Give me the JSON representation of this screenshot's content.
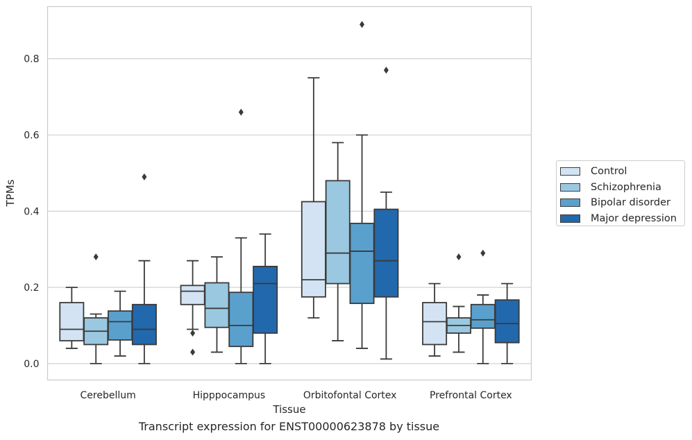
{
  "chart_data": {
    "type": "box",
    "xlabel": "Tissue",
    "ylabel": "TPMs",
    "caption": "Transcript expression for ENST00000623878 by tissue",
    "categories": [
      "Cerebellum",
      "Hipppocampus",
      "Orbitofontal Cortex",
      "Prefrontal Cortex"
    ],
    "ylim": [
      -0.043,
      0.937
    ],
    "yticks": [
      0.0,
      0.2,
      0.4,
      0.6,
      0.8
    ],
    "ytick_labels": [
      "0.0",
      "0.2",
      "0.4",
      "0.6",
      "0.8"
    ],
    "grid": true,
    "legend_position": "right",
    "series": [
      {
        "name": "Control",
        "color": "#d3e3f3",
        "boxes": [
          {
            "whislo": 0.04,
            "q1": 0.06,
            "med": 0.09,
            "q3": 0.16,
            "whishi": 0.2,
            "fliers": []
          },
          {
            "whislo": 0.09,
            "q1": 0.155,
            "med": 0.19,
            "q3": 0.205,
            "whishi": 0.27,
            "fliers": [
              0.08,
              0.03
            ]
          },
          {
            "whislo": 0.12,
            "q1": 0.175,
            "med": 0.22,
            "q3": 0.425,
            "whishi": 0.75,
            "fliers": []
          },
          {
            "whislo": 0.02,
            "q1": 0.05,
            "med": 0.11,
            "q3": 0.16,
            "whishi": 0.21,
            "fliers": []
          }
        ]
      },
      {
        "name": "Schizophrenia",
        "color": "#9ac8e0",
        "boxes": [
          {
            "whislo": 0.0,
            "q1": 0.05,
            "med": 0.085,
            "q3": 0.12,
            "whishi": 0.13,
            "fliers": [
              0.28
            ]
          },
          {
            "whislo": 0.03,
            "q1": 0.095,
            "med": 0.145,
            "q3": 0.212,
            "whishi": 0.28,
            "fliers": []
          },
          {
            "whislo": 0.06,
            "q1": 0.21,
            "med": 0.29,
            "q3": 0.48,
            "whishi": 0.58,
            "fliers": []
          },
          {
            "whislo": 0.03,
            "q1": 0.08,
            "med": 0.1,
            "q3": 0.12,
            "whishi": 0.15,
            "fliers": [
              0.28
            ]
          }
        ]
      },
      {
        "name": "Bipolar disorder",
        "color": "#5aa0cd",
        "boxes": [
          {
            "whislo": 0.02,
            "q1": 0.062,
            "med": 0.11,
            "q3": 0.138,
            "whishi": 0.19,
            "fliers": []
          },
          {
            "whislo": 0.0,
            "q1": 0.045,
            "med": 0.1,
            "q3": 0.187,
            "whishi": 0.33,
            "fliers": [
              0.66
            ]
          },
          {
            "whislo": 0.04,
            "q1": 0.158,
            "med": 0.295,
            "q3": 0.368,
            "whishi": 0.6,
            "fliers": [
              0.89
            ]
          },
          {
            "whislo": 0.0,
            "q1": 0.093,
            "med": 0.115,
            "q3": 0.155,
            "whishi": 0.18,
            "fliers": [
              0.29
            ]
          }
        ]
      },
      {
        "name": "Major depression",
        "color": "#2268ad",
        "boxes": [
          {
            "whislo": 0.0,
            "q1": 0.05,
            "med": 0.09,
            "q3": 0.155,
            "whishi": 0.27,
            "fliers": [
              0.49
            ]
          },
          {
            "whislo": 0.0,
            "q1": 0.08,
            "med": 0.21,
            "q3": 0.255,
            "whishi": 0.34,
            "fliers": []
          },
          {
            "whislo": 0.012,
            "q1": 0.175,
            "med": 0.27,
            "q3": 0.405,
            "whishi": 0.45,
            "fliers": [
              0.77
            ]
          },
          {
            "whislo": 0.0,
            "q1": 0.055,
            "med": 0.105,
            "q3": 0.167,
            "whishi": 0.21,
            "fliers": []
          }
        ]
      }
    ]
  }
}
